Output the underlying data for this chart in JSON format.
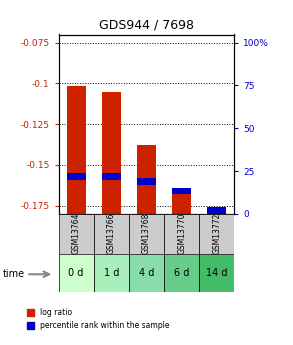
{
  "title": "GDS944 / 7698",
  "samples": [
    "GSM13764",
    "GSM13766",
    "GSM13768",
    "GSM13770",
    "GSM13772"
  ],
  "time_labels": [
    "0 d",
    "1 d",
    "4 d",
    "6 d",
    "14 d"
  ],
  "log_ratio": [
    -0.1015,
    -0.105,
    -0.138,
    -0.168,
    -0.1775
  ],
  "percentile_rank_y": [
    -0.157,
    -0.157,
    -0.16,
    -0.166,
    -0.178
  ],
  "bar_bottom": -0.18,
  "ylim": [
    -0.18,
    -0.07
  ],
  "yticks_left": [
    -0.075,
    -0.1,
    -0.125,
    -0.15,
    -0.175
  ],
  "yticks_left_labels": [
    "-0.075",
    "-0.1",
    "-0.125",
    "-0.15",
    "-0.175"
  ],
  "pct_ticks_y": [
    -0.18,
    -0.15375,
    -0.1275,
    -0.10125,
    -0.075
  ],
  "pct_tick_labels": [
    "0",
    "25",
    "50",
    "75",
    "100%"
  ],
  "red_color": "#cc2200",
  "blue_color": "#0000cc",
  "time_row_colors": [
    "#ccffcc",
    "#aaeebb",
    "#88ddaa",
    "#66cc88",
    "#44bb66"
  ],
  "sample_row_color": "#cccccc",
  "bar_width": 0.55,
  "percentile_bar_height": 0.004
}
